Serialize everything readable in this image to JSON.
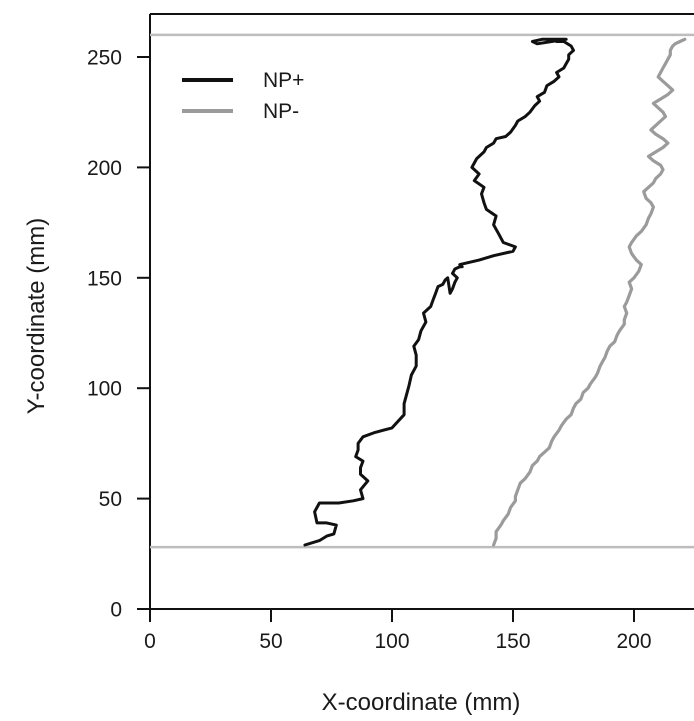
{
  "chart_data": {
    "type": "line",
    "xlabel": "X-coordinate (mm)",
    "ylabel": "Y-coordinate (mm)",
    "xlim": [
      0,
      225
    ],
    "ylim": [
      0,
      265
    ],
    "xticks": [
      0,
      50,
      100,
      150,
      200
    ],
    "yticks": [
      0,
      50,
      100,
      150,
      200,
      250
    ],
    "legend_position": "top-left",
    "grid": false,
    "reference_lines": [
      {
        "y": 260,
        "color": "#bdbdbd"
      },
      {
        "y": 28,
        "color": "#bdbdbd"
      }
    ],
    "series": [
      {
        "name": "NP+",
        "color": "#111111",
        "x": [
          64,
          70,
          73,
          76,
          77,
          73,
          69,
          68,
          70,
          78,
          84,
          88,
          87,
          90,
          87,
          87,
          88,
          85,
          86,
          86,
          88,
          93,
          100,
          105,
          105,
          106,
          107,
          108,
          110,
          110,
          109,
          111,
          112,
          114,
          113,
          116,
          117,
          118,
          119,
          121,
          122,
          123,
          124,
          125,
          126,
          127,
          125,
          126,
          128,
          129,
          128,
          136,
          142,
          150,
          151,
          146,
          144,
          142,
          143,
          139,
          138,
          137,
          138,
          134,
          136,
          133,
          135,
          138,
          139,
          142,
          143,
          147,
          149,
          151,
          152,
          155,
          157,
          159,
          161,
          160,
          163,
          164,
          167,
          169,
          168,
          171,
          172,
          173,
          173,
          175,
          174,
          171,
          168,
          166,
          162,
          158,
          160,
          166,
          172,
          165
        ],
        "y": [
          29,
          31,
          33,
          34,
          38,
          39,
          39,
          44,
          48,
          48,
          49,
          50,
          54,
          58,
          61,
          64,
          67,
          69,
          72,
          75,
          78,
          80,
          82,
          88,
          93,
          97,
          101,
          106,
          110,
          115,
          119,
          122,
          126,
          130,
          134,
          137,
          140,
          143,
          146,
          147,
          149,
          150,
          143,
          145,
          148,
          150,
          152,
          154,
          155,
          155,
          156,
          158,
          160,
          162,
          164,
          166,
          170,
          174,
          178,
          181,
          184,
          188,
          191,
          194,
          197,
          200,
          204,
          207,
          209,
          211,
          213,
          214,
          216,
          219,
          221,
          223,
          225,
          228,
          230,
          232,
          234,
          237,
          239,
          241,
          243,
          245,
          247,
          249,
          251,
          253,
          255,
          257,
          257,
          258,
          258,
          257,
          256,
          257,
          258,
          258
        ]
      },
      {
        "name": "NP-",
        "color": "#9b9b9b",
        "x": [
          142,
          143,
          143,
          145,
          146,
          148,
          149,
          151,
          151,
          152,
          153,
          155,
          157,
          158,
          160,
          161,
          163,
          165,
          166,
          167,
          169,
          170,
          172,
          174,
          175,
          176,
          178,
          179,
          181,
          182,
          184,
          185,
          186,
          187,
          188,
          189,
          190,
          192,
          193,
          194,
          196,
          196,
          197,
          196,
          197,
          198,
          199,
          198,
          200,
          202,
          203,
          201,
          199,
          198,
          199,
          201,
          203,
          205,
          206,
          207,
          208,
          207,
          205,
          204,
          206,
          208,
          209,
          211,
          212,
          211,
          208,
          206,
          209,
          212,
          214,
          212,
          209,
          207,
          209,
          211,
          213,
          212,
          210,
          208,
          211,
          214,
          216,
          214,
          212,
          210,
          211,
          212,
          213,
          214,
          215,
          215,
          216,
          217,
          219,
          221
        ],
        "y": [
          29,
          32,
          35,
          38,
          40,
          43,
          46,
          49,
          51,
          54,
          57,
          59,
          62,
          65,
          67,
          69,
          71,
          73,
          76,
          78,
          81,
          83,
          86,
          88,
          91,
          93,
          95,
          98,
          100,
          102,
          105,
          107,
          110,
          112,
          114,
          117,
          119,
          121,
          124,
          126,
          129,
          131,
          134,
          137,
          139,
          142,
          145,
          148,
          150,
          153,
          156,
          158,
          161,
          164,
          166,
          169,
          171,
          174,
          177,
          179,
          182,
          184,
          186,
          189,
          191,
          193,
          195,
          197,
          199,
          201,
          203,
          205,
          207,
          209,
          211,
          213,
          215,
          217,
          219,
          221,
          223,
          225,
          227,
          229,
          231,
          233,
          235,
          237,
          239,
          241,
          243,
          245,
          247,
          249,
          251,
          253,
          255,
          256,
          257,
          258
        ]
      }
    ]
  }
}
